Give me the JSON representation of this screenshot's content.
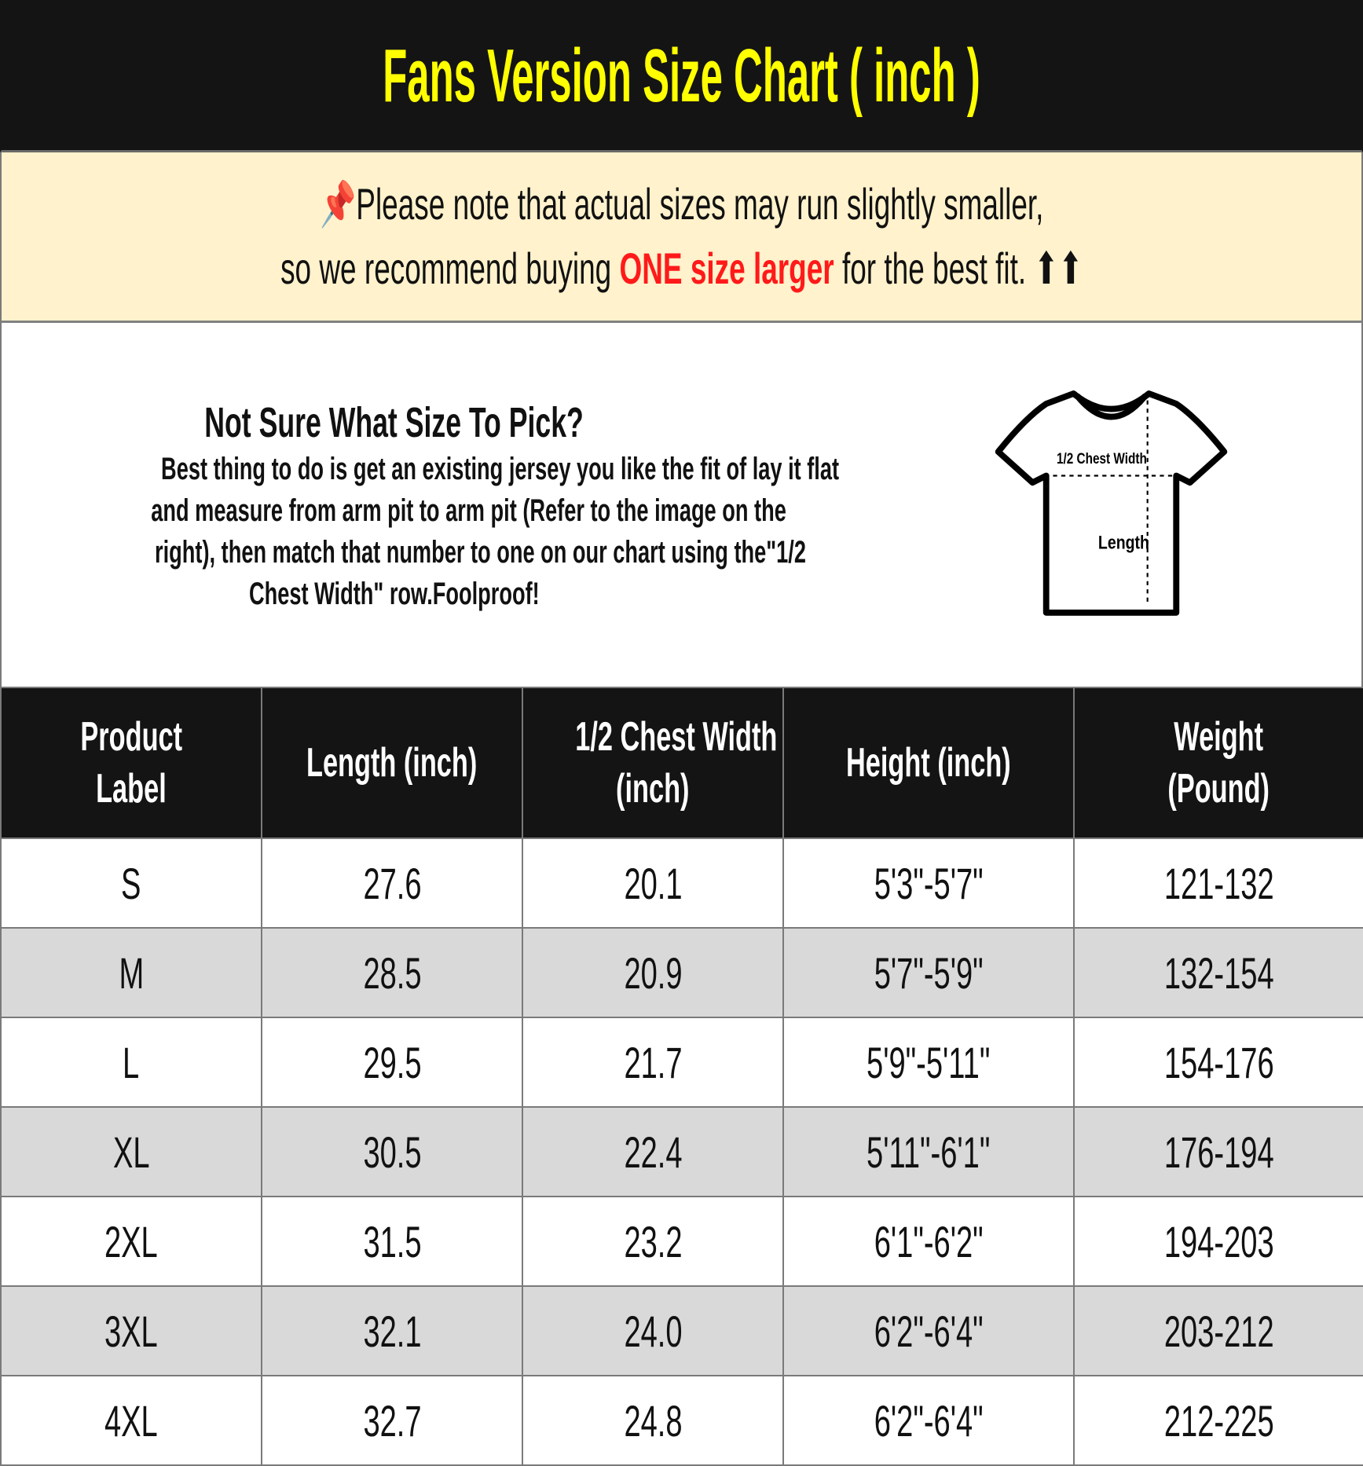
{
  "title": "Fans Version Size Chart ( inch )",
  "note": {
    "icon": "pushpin-icon",
    "line1": "Please note that actual sizes may run slightly smaller,",
    "line2_pre": "so we recommend buying ",
    "line2_highlight": "ONE size larger",
    "line2_post": " for the best fit. ",
    "arrows": "⬆⬆",
    "highlight_color": "#ff1a1a"
  },
  "info": {
    "heading": "Not Sure What Size To Pick?",
    "lines": [
      "Best thing to do is get an existing jersey you like the fit of lay it flat",
      "and measure from arm pit to arm pit (Refer to the image on the",
      "right), then match that number to one on our chart using the\"1/2",
      "Chest Width\" row.Foolproof!"
    ],
    "diagram": {
      "chest_label": "1/2 Chest Width",
      "length_label": "Length"
    }
  },
  "table": {
    "headers": [
      [
        "Product",
        "Label"
      ],
      [
        "Length (inch)"
      ],
      [
        "1/2 Chest Width",
        "(inch)"
      ],
      [
        "Height (inch)"
      ],
      [
        "Weight",
        "(Pound)"
      ]
    ],
    "rows": [
      [
        "S",
        "27.6",
        "20.1",
        "5'3\"-5'7\"",
        "121-132"
      ],
      [
        "M",
        "28.5",
        "20.9",
        "5'7\"-5'9\"",
        "132-154"
      ],
      [
        "L",
        "29.5",
        "21.7",
        "5'9\"-5'11\"",
        "154-176"
      ],
      [
        "XL",
        "30.5",
        "22.4",
        "5'11\"-6'1\"",
        "176-194"
      ],
      [
        "2XL",
        "31.5",
        "23.2",
        "6'1\"-6'2\"",
        "194-203"
      ],
      [
        "3XL",
        "32.1",
        "24.0",
        "6'2\"-6'4\"",
        "203-212"
      ],
      [
        "4XL",
        "32.7",
        "24.8",
        "6'2\"-6'4\"",
        "212-225"
      ]
    ]
  },
  "colors": {
    "title_bg": "#141414",
    "title_text": "#ffff00",
    "note_bg": "#fff2cc",
    "alt_row": "#d9d9d9"
  }
}
